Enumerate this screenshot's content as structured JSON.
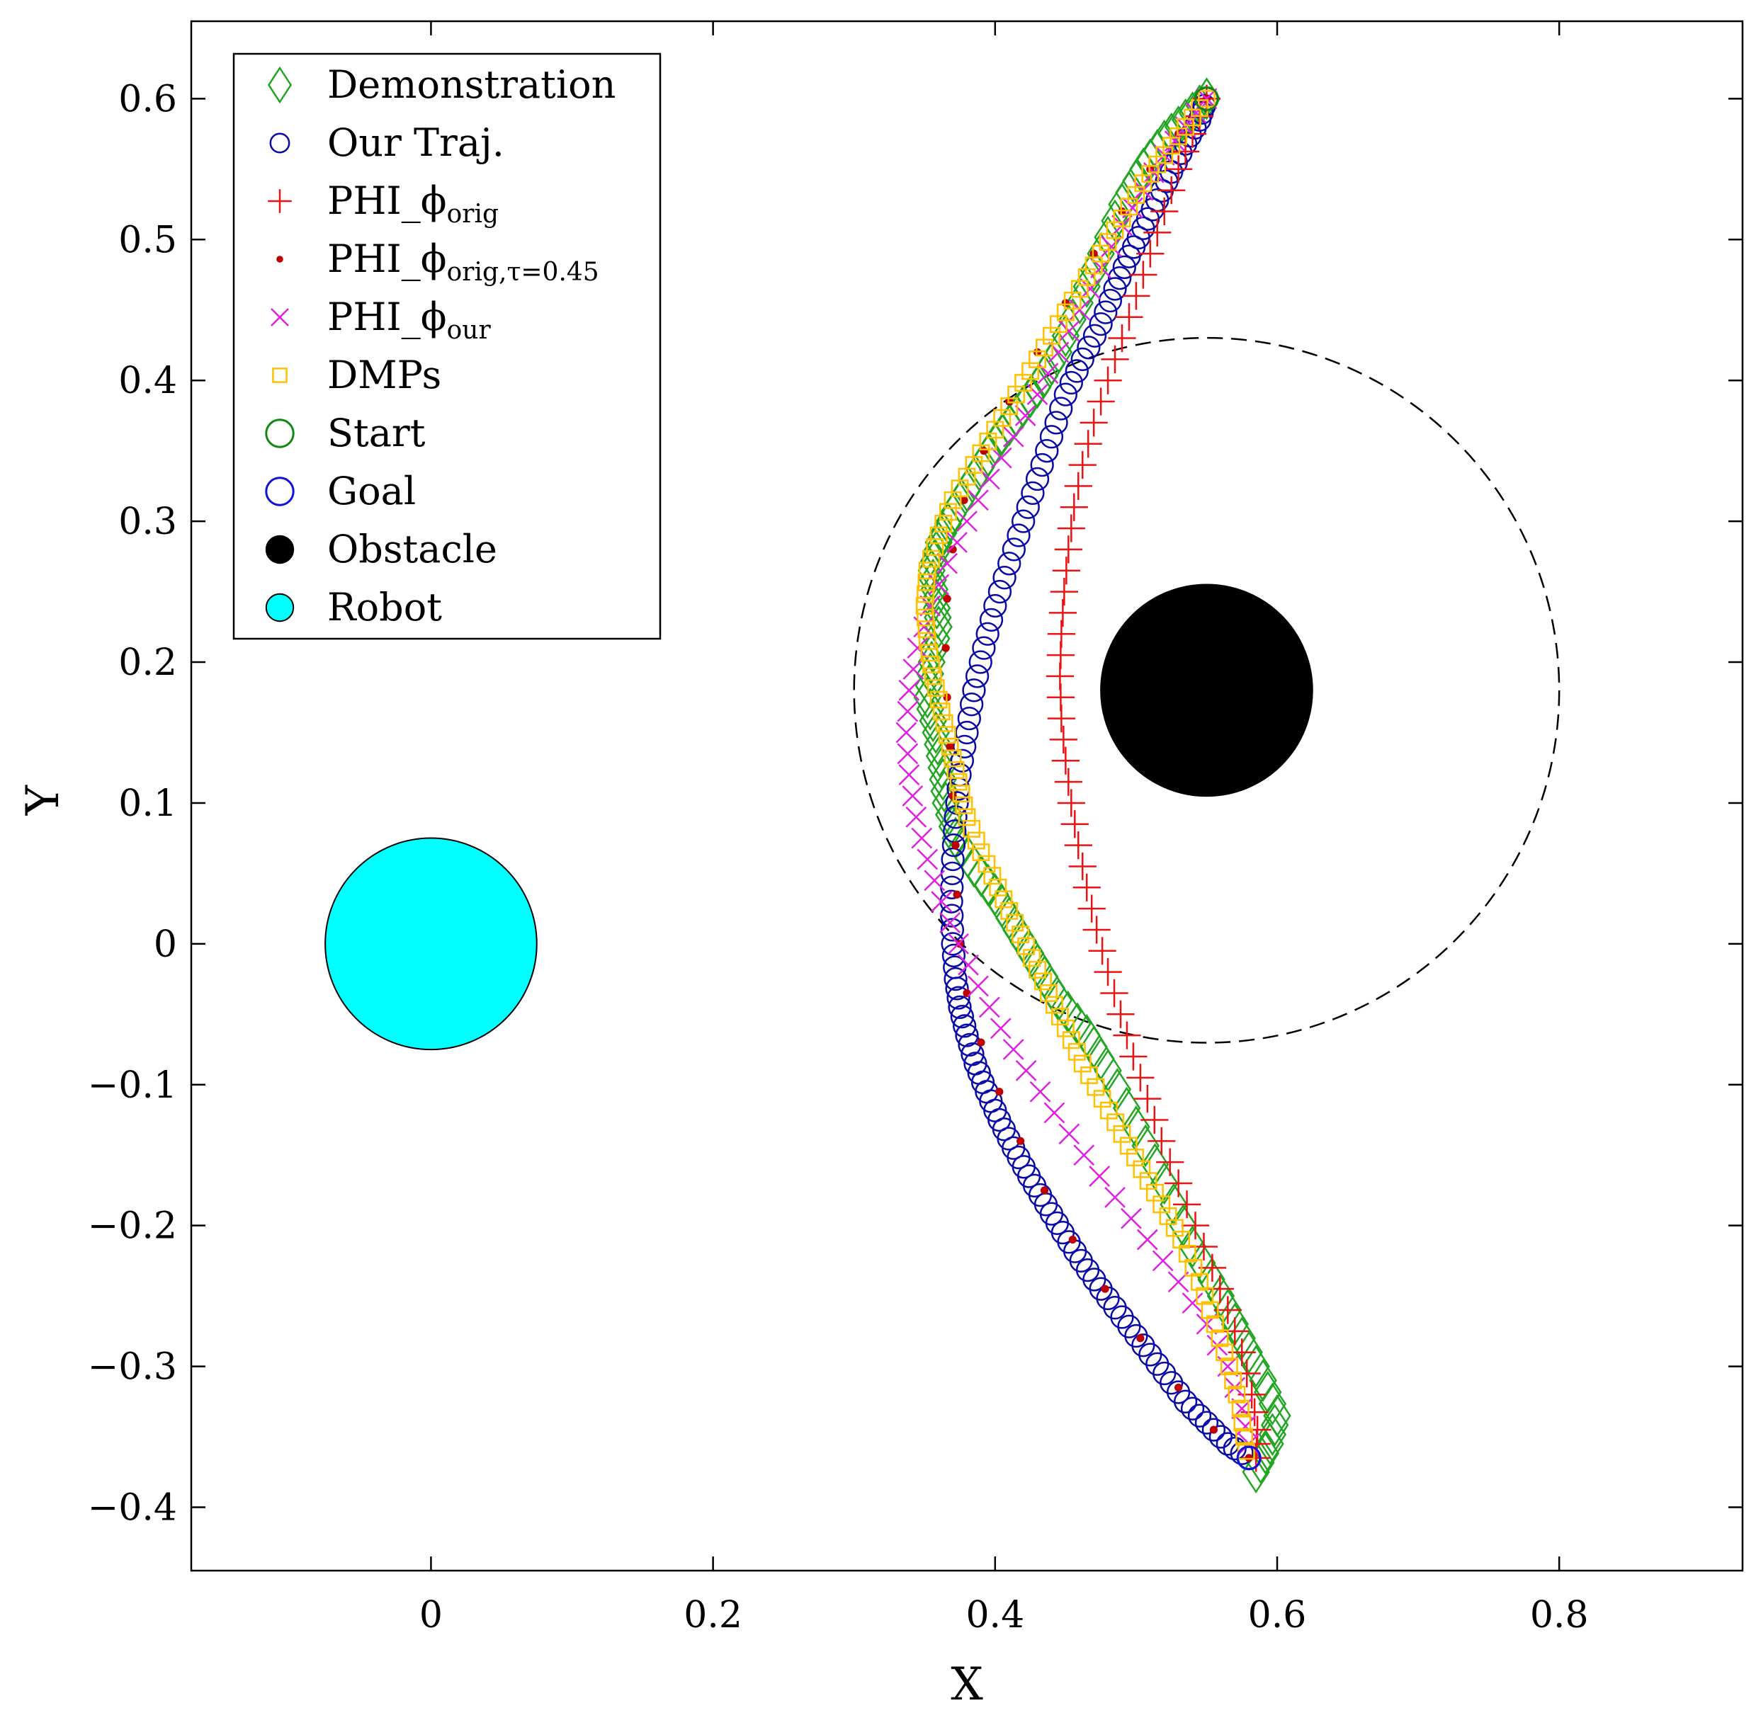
{
  "chart_data": {
    "type": "scatter",
    "title": "",
    "xlabel": "X",
    "ylabel": "Y",
    "xlim": [
      -0.17,
      0.93
    ],
    "ylim": [
      -0.445,
      0.655
    ],
    "xticks": [
      0,
      0.2,
      0.4,
      0.6,
      0.8
    ],
    "xtick_labels": [
      "0",
      "0.2",
      "0.4",
      "0.6",
      "0.8"
    ],
    "yticks": [
      0.6,
      0.5,
      0.4,
      0.3,
      0.2,
      0.1,
      0,
      -0.1,
      -0.2,
      -0.3,
      -0.4
    ],
    "ytick_labels": [
      "0.6",
      "0.5",
      "0.4",
      "0.3",
      "0.2",
      "0.1",
      "0",
      "−0.1",
      "−0.2",
      "−0.3",
      "−0.4"
    ],
    "grid": false,
    "legend_position": "top-left",
    "legend": [
      {
        "key": "demo",
        "label": "Demonstration",
        "sub": ""
      },
      {
        "key": "ours",
        "label": "Our Traj.",
        "sub": ""
      },
      {
        "key": "phi_orig",
        "label": "PHI_ϕ",
        "sub": "orig"
      },
      {
        "key": "phi_tau",
        "label": "PHI_ϕ",
        "sub": "orig,τ=0.45"
      },
      {
        "key": "phi_our",
        "label": "PHI_ϕ",
        "sub": "our"
      },
      {
        "key": "dmps",
        "label": "DMPs",
        "sub": ""
      },
      {
        "key": "start",
        "label": "Start",
        "sub": ""
      },
      {
        "key": "goal",
        "label": "Goal",
        "sub": ""
      },
      {
        "key": "obstacle",
        "label": "Obstacle",
        "sub": ""
      },
      {
        "key": "robot",
        "label": "Robot",
        "sub": ""
      }
    ],
    "colors": {
      "demo": "#22a622",
      "ours": "#0a0aa8",
      "phi_orig": "#ee1111",
      "phi_tau": "#c00000",
      "phi_our": "#e020e0",
      "dmps": "#ffc000",
      "start": "#118811",
      "goal": "#1111dd",
      "obstacle": "#000000",
      "robot": "#00ffff"
    },
    "start": [
      0.55,
      0.6
    ],
    "goal": [
      0.58,
      -0.365
    ],
    "obstacle": {
      "center": [
        0.55,
        0.18
      ],
      "radius": 0.075
    },
    "safety_region": {
      "center": [
        0.55,
        0.18
      ],
      "radius": 0.25
    },
    "robot": {
      "center": [
        0,
        0
      ],
      "radius": 0.075
    },
    "series": [
      {
        "key": "demo",
        "name": "Demonstration",
        "points": [
          [
            0.55,
            0.6
          ],
          [
            0.535,
            0.585
          ],
          [
            0.52,
            0.57
          ],
          [
            0.505,
            0.55
          ],
          [
            0.49,
            0.525
          ],
          [
            0.475,
            0.49
          ],
          [
            0.46,
            0.455
          ],
          [
            0.445,
            0.42
          ],
          [
            0.43,
            0.395
          ],
          [
            0.415,
            0.375
          ],
          [
            0.4,
            0.355
          ],
          [
            0.385,
            0.33
          ],
          [
            0.37,
            0.305
          ],
          [
            0.36,
            0.285
          ],
          [
            0.355,
            0.265
          ],
          [
            0.358,
            0.245
          ],
          [
            0.36,
            0.225
          ],
          [
            0.355,
            0.2
          ],
          [
            0.352,
            0.175
          ],
          [
            0.358,
            0.15
          ],
          [
            0.362,
            0.125
          ],
          [
            0.365,
            0.1
          ],
          [
            0.372,
            0.075
          ],
          [
            0.385,
            0.055
          ],
          [
            0.4,
            0.035
          ],
          [
            0.415,
            0.01
          ],
          [
            0.43,
            -0.015
          ],
          [
            0.445,
            -0.04
          ],
          [
            0.465,
            -0.065
          ],
          [
            0.48,
            -0.09
          ],
          [
            0.5,
            -0.13
          ],
          [
            0.52,
            -0.17
          ],
          [
            0.54,
            -0.215
          ],
          [
            0.56,
            -0.25
          ],
          [
            0.575,
            -0.28
          ],
          [
            0.59,
            -0.31
          ],
          [
            0.6,
            -0.335
          ],
          [
            0.595,
            -0.355
          ],
          [
            0.585,
            -0.375
          ]
        ]
      },
      {
        "key": "ours",
        "name": "Our Traj.",
        "points": [
          [
            0.55,
            0.6
          ],
          [
            0.545,
            0.585
          ],
          [
            0.535,
            0.568
          ],
          [
            0.525,
            0.548
          ],
          [
            0.515,
            0.528
          ],
          [
            0.505,
            0.508
          ],
          [
            0.495,
            0.488
          ],
          [
            0.485,
            0.465
          ],
          [
            0.475,
            0.44
          ],
          [
            0.462,
            0.415
          ],
          [
            0.45,
            0.39
          ],
          [
            0.44,
            0.36
          ],
          [
            0.43,
            0.33
          ],
          [
            0.42,
            0.3
          ],
          [
            0.41,
            0.27
          ],
          [
            0.4,
            0.24
          ],
          [
            0.392,
            0.21
          ],
          [
            0.385,
            0.18
          ],
          [
            0.38,
            0.15
          ],
          [
            0.375,
            0.12
          ],
          [
            0.372,
            0.09
          ],
          [
            0.37,
            0.06
          ],
          [
            0.369,
            0.03
          ],
          [
            0.37,
            0.0
          ],
          [
            0.372,
            -0.025
          ],
          [
            0.375,
            -0.045
          ],
          [
            0.38,
            -0.065
          ],
          [
            0.386,
            -0.085
          ],
          [
            0.394,
            -0.105
          ],
          [
            0.403,
            -0.125
          ],
          [
            0.413,
            -0.145
          ],
          [
            0.424,
            -0.165
          ],
          [
            0.436,
            -0.185
          ],
          [
            0.448,
            -0.205
          ],
          [
            0.461,
            -0.225
          ],
          [
            0.475,
            -0.245
          ],
          [
            0.49,
            -0.265
          ],
          [
            0.505,
            -0.285
          ],
          [
            0.52,
            -0.305
          ],
          [
            0.535,
            -0.325
          ],
          [
            0.55,
            -0.34
          ],
          [
            0.565,
            -0.355
          ],
          [
            0.58,
            -0.365
          ]
        ]
      },
      {
        "key": "phi_orig",
        "name": "PHI_ϕorig",
        "points": [
          [
            0.55,
            0.6
          ],
          [
            0.54,
            0.575
          ],
          [
            0.53,
            0.55
          ],
          [
            0.52,
            0.52
          ],
          [
            0.51,
            0.49
          ],
          [
            0.5,
            0.46
          ],
          [
            0.49,
            0.43
          ],
          [
            0.48,
            0.4
          ],
          [
            0.47,
            0.37
          ],
          [
            0.462,
            0.34
          ],
          [
            0.456,
            0.31
          ],
          [
            0.452,
            0.28
          ],
          [
            0.449,
            0.25
          ],
          [
            0.447,
            0.22
          ],
          [
            0.446,
            0.19
          ],
          [
            0.447,
            0.16
          ],
          [
            0.45,
            0.13
          ],
          [
            0.454,
            0.1
          ],
          [
            0.459,
            0.07
          ],
          [
            0.465,
            0.04
          ],
          [
            0.472,
            0.01
          ],
          [
            0.48,
            -0.02
          ],
          [
            0.489,
            -0.05
          ],
          [
            0.498,
            -0.08
          ],
          [
            0.508,
            -0.11
          ],
          [
            0.518,
            -0.14
          ],
          [
            0.53,
            -0.17
          ],
          [
            0.542,
            -0.2
          ],
          [
            0.554,
            -0.23
          ],
          [
            0.565,
            -0.26
          ],
          [
            0.575,
            -0.29
          ],
          [
            0.582,
            -0.32
          ],
          [
            0.586,
            -0.345
          ],
          [
            0.585,
            -0.365
          ]
        ]
      },
      {
        "key": "phi_tau",
        "name": "PHI_ϕorig,τ=0.45",
        "points": [
          [
            0.55,
            0.6
          ],
          [
            0.53,
            0.575
          ],
          [
            0.51,
            0.55
          ],
          [
            0.49,
            0.52
          ],
          [
            0.47,
            0.49
          ],
          [
            0.45,
            0.455
          ],
          [
            0.43,
            0.42
          ],
          [
            0.41,
            0.385
          ],
          [
            0.392,
            0.35
          ],
          [
            0.378,
            0.315
          ],
          [
            0.37,
            0.28
          ],
          [
            0.366,
            0.245
          ],
          [
            0.365,
            0.21
          ],
          [
            0.366,
            0.175
          ],
          [
            0.368,
            0.14
          ],
          [
            0.37,
            0.105
          ],
          [
            0.372,
            0.07
          ],
          [
            0.373,
            0.035
          ],
          [
            0.375,
            0.0
          ],
          [
            0.38,
            -0.035
          ],
          [
            0.39,
            -0.07
          ],
          [
            0.403,
            -0.105
          ],
          [
            0.418,
            -0.14
          ],
          [
            0.435,
            -0.175
          ],
          [
            0.455,
            -0.21
          ],
          [
            0.478,
            -0.245
          ],
          [
            0.503,
            -0.28
          ],
          [
            0.53,
            -0.315
          ],
          [
            0.555,
            -0.345
          ],
          [
            0.58,
            -0.365
          ]
        ]
      },
      {
        "key": "phi_our",
        "name": "PHI_ϕour",
        "points": [
          [
            0.55,
            0.6
          ],
          [
            0.535,
            0.58
          ],
          [
            0.52,
            0.56
          ],
          [
            0.505,
            0.535
          ],
          [
            0.49,
            0.51
          ],
          [
            0.475,
            0.48
          ],
          [
            0.46,
            0.45
          ],
          [
            0.445,
            0.42
          ],
          [
            0.43,
            0.39
          ],
          [
            0.413,
            0.36
          ],
          [
            0.396,
            0.33
          ],
          [
            0.38,
            0.3
          ],
          [
            0.366,
            0.27
          ],
          [
            0.354,
            0.24
          ],
          [
            0.345,
            0.21
          ],
          [
            0.339,
            0.18
          ],
          [
            0.337,
            0.15
          ],
          [
            0.339,
            0.12
          ],
          [
            0.344,
            0.09
          ],
          [
            0.352,
            0.06
          ],
          [
            0.362,
            0.03
          ],
          [
            0.374,
            0.0
          ],
          [
            0.388,
            -0.03
          ],
          [
            0.404,
            -0.06
          ],
          [
            0.422,
            -0.09
          ],
          [
            0.442,
            -0.12
          ],
          [
            0.463,
            -0.15
          ],
          [
            0.485,
            -0.18
          ],
          [
            0.508,
            -0.21
          ],
          [
            0.53,
            -0.24
          ],
          [
            0.55,
            -0.27
          ],
          [
            0.565,
            -0.3
          ],
          [
            0.575,
            -0.33
          ],
          [
            0.58,
            -0.355
          ]
        ]
      },
      {
        "key": "dmps",
        "name": "DMPs",
        "points": [
          [
            0.55,
            0.6
          ],
          [
            0.535,
            0.58
          ],
          [
            0.52,
            0.56
          ],
          [
            0.505,
            0.54
          ],
          [
            0.49,
            0.515
          ],
          [
            0.475,
            0.49
          ],
          [
            0.46,
            0.465
          ],
          [
            0.445,
            0.44
          ],
          [
            0.43,
            0.415
          ],
          [
            0.415,
            0.39
          ],
          [
            0.4,
            0.365
          ],
          [
            0.385,
            0.34
          ],
          [
            0.37,
            0.315
          ],
          [
            0.36,
            0.29
          ],
          [
            0.352,
            0.265
          ],
          [
            0.35,
            0.24
          ],
          [
            0.352,
            0.215
          ],
          [
            0.356,
            0.19
          ],
          [
            0.362,
            0.165
          ],
          [
            0.368,
            0.14
          ],
          [
            0.374,
            0.115
          ],
          [
            0.38,
            0.09
          ],
          [
            0.39,
            0.065
          ],
          [
            0.402,
            0.04
          ],
          [
            0.414,
            0.015
          ],
          [
            0.426,
            -0.01
          ],
          [
            0.438,
            -0.035
          ],
          [
            0.45,
            -0.06
          ],
          [
            0.462,
            -0.085
          ],
          [
            0.476,
            -0.11
          ],
          [
            0.49,
            -0.135
          ],
          [
            0.504,
            -0.16
          ],
          [
            0.518,
            -0.185
          ],
          [
            0.532,
            -0.21
          ],
          [
            0.545,
            -0.24
          ],
          [
            0.556,
            -0.27
          ],
          [
            0.566,
            -0.3
          ],
          [
            0.574,
            -0.33
          ],
          [
            0.578,
            -0.36
          ]
        ]
      }
    ]
  }
}
